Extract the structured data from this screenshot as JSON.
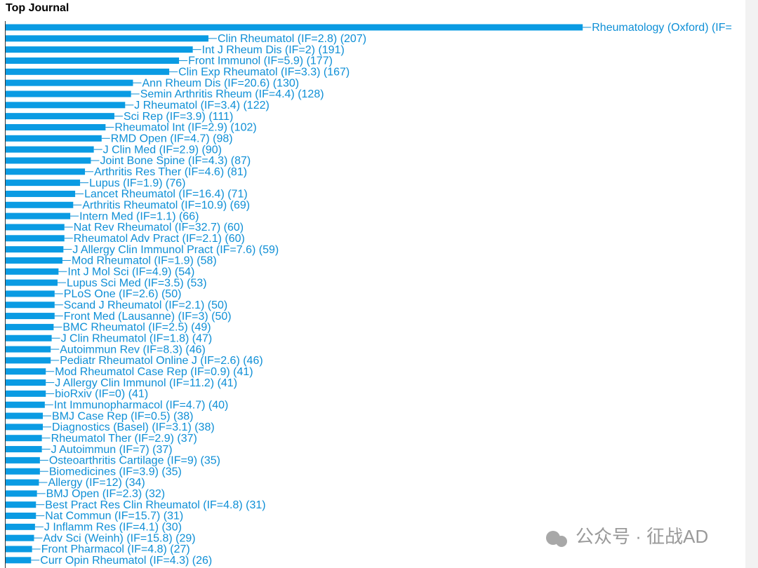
{
  "chart_data": {
    "type": "hbar",
    "title": "Top Journal",
    "color": "#0a9be3",
    "categories": [
      "Rheumatology (Oxford) (IF=",
      "Clin Rheumatol (IF=2.8) (207)",
      "Int J Rheum Dis (IF=2) (191)",
      "Front Immunol (IF=5.9) (177)",
      "Clin Exp Rheumatol (IF=3.3) (167)",
      "Ann Rheum Dis (IF=20.6) (130)",
      "Semin Arthritis Rheum (IF=4.4) (128)",
      "J Rheumatol (IF=3.4) (122)",
      "Sci Rep (IF=3.9) (111)",
      "Rheumatol Int (IF=2.9) (102)",
      "RMD Open (IF=4.7) (98)",
      "J Clin Med (IF=2.9) (90)",
      "Joint Bone Spine (IF=4.3) (87)",
      "Arthritis Res Ther (IF=4.6) (81)",
      "Lupus (IF=1.9) (76)",
      "Lancet Rheumatol (IF=16.4) (71)",
      "Arthritis Rheumatol (IF=10.9) (69)",
      "Intern Med (IF=1.1) (66)",
      "Nat Rev Rheumatol (IF=32.7) (60)",
      "Rheumatol Adv Pract (IF=2.1) (60)",
      "J Allergy Clin Immunol Pract (IF=7.6) (59)",
      "Mod Rheumatol (IF=1.9) (58)",
      "Int J Mol Sci (IF=4.9) (54)",
      "Lupus Sci Med (IF=3.5) (53)",
      "PLoS One (IF=2.6) (50)",
      "Scand J Rheumatol (IF=2.1) (50)",
      "Front Med (Lausanne) (IF=3) (50)",
      "BMC Rheumatol (IF=2.5) (49)",
      "J Clin Rheumatol (IF=1.8) (47)",
      "Autoimmun Rev (IF=8.3) (46)",
      "Pediatr Rheumatol Online J (IF=2.6) (46)",
      "Mod Rheumatol Case Rep (IF=0.9) (41)",
      "J Allergy Clin Immunol (IF=11.2) (41)",
      "bioRxiv (IF=0) (41)",
      "Int Immunopharmacol (IF=4.7) (40)",
      "BMJ Case Rep (IF=0.5) (38)",
      "Diagnostics (Basel) (IF=3.1) (38)",
      "Rheumatol Ther (IF=2.9) (37)",
      "J Autoimmun (IF=7) (37)",
      "Osteoarthritis Cartilage (IF=9) (35)",
      "Biomedicines (IF=3.9) (35)",
      "Allergy (IF=12) (34)",
      "BMJ Open (IF=2.3) (32)",
      "Best Pract Res Clin Rheumatol (IF=4.8) (31)",
      "Nat Commun (IF=15.7) (31)",
      "J Inflamm Res (IF=4.1) (30)",
      "Adv Sci (Weinh) (IF=15.8) (29)",
      "Front Pharmacol (IF=4.8) (27)",
      "Curr Opin Rheumatol (IF=4.3) (26)"
    ],
    "values": [
      589,
      207,
      191,
      177,
      167,
      130,
      128,
      122,
      111,
      102,
      98,
      90,
      87,
      81,
      76,
      71,
      69,
      66,
      60,
      60,
      59,
      58,
      54,
      53,
      50,
      50,
      50,
      49,
      47,
      46,
      46,
      41,
      41,
      41,
      40,
      38,
      38,
      37,
      37,
      35,
      35,
      34,
      32,
      31,
      31,
      30,
      29,
      27,
      26
    ]
  },
  "watermark": "公众号 · 征战AD"
}
